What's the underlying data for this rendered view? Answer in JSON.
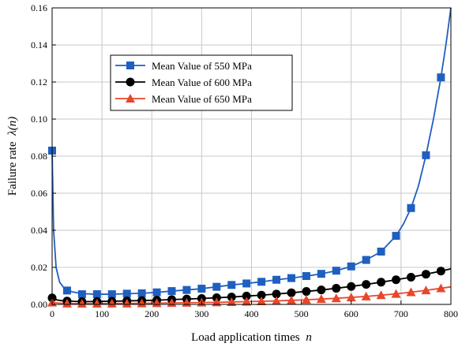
{
  "chart_data": {
    "type": "line",
    "title": "",
    "xlabel": "Load application times",
    "xlabel_var": "n",
    "ylabel": "Failure rate",
    "ylabel_var": "λ(n)",
    "xlim": [
      0,
      800
    ],
    "ylim": [
      0,
      0.16
    ],
    "x_ticks": [
      0,
      100,
      200,
      300,
      400,
      500,
      600,
      700,
      800
    ],
    "y_ticks": [
      0.0,
      0.02,
      0.04,
      0.06,
      0.08,
      0.1,
      0.12,
      0.14,
      0.16
    ],
    "x_tick_labels": [
      "0",
      "100",
      "200",
      "300",
      "400",
      "500",
      "600",
      "700",
      "800"
    ],
    "y_tick_labels": [
      "0.00",
      "0.02",
      "0.04",
      "0.06",
      "0.08",
      "0.10",
      "0.12",
      "0.14",
      "0.16"
    ],
    "grid": true,
    "legend_position": "upper-left",
    "series": [
      {
        "name": "Mean Value of 550 MPa",
        "color": "#1f5fbf",
        "marker": "square",
        "x": [
          0,
          30,
          60,
          90,
          120,
          150,
          180,
          210,
          240,
          270,
          300,
          330,
          360,
          390,
          420,
          450,
          480,
          510,
          540,
          570,
          600,
          630,
          660,
          690,
          720,
          750,
          780
        ],
        "y": [
          0.083,
          0.0075,
          0.0055,
          0.0055,
          0.0055,
          0.0058,
          0.006,
          0.0065,
          0.0072,
          0.0078,
          0.0085,
          0.0095,
          0.0105,
          0.0113,
          0.0122,
          0.0133,
          0.0142,
          0.0153,
          0.0165,
          0.0182,
          0.0205,
          0.024,
          0.0285,
          0.037,
          0.052,
          0.0805,
          0.1225
        ],
        "curve_x": [
          0,
          3,
          8,
          15,
          25,
          40,
          60,
          90,
          120,
          150,
          180,
          210,
          240,
          270,
          300,
          330,
          360,
          390,
          420,
          450,
          480,
          510,
          540,
          570,
          600,
          630,
          660,
          690,
          705,
          720,
          735,
          750,
          765,
          780,
          790,
          800
        ],
        "curve_y": [
          0.083,
          0.04,
          0.02,
          0.012,
          0.0085,
          0.0068,
          0.0058,
          0.0055,
          0.0055,
          0.0058,
          0.006,
          0.0065,
          0.0072,
          0.0078,
          0.0085,
          0.0095,
          0.0105,
          0.0113,
          0.0122,
          0.0133,
          0.0142,
          0.0153,
          0.0165,
          0.0182,
          0.0205,
          0.024,
          0.0285,
          0.037,
          0.0435,
          0.052,
          0.064,
          0.0805,
          0.1,
          0.1225,
          0.14,
          0.16
        ]
      },
      {
        "name": "Mean Value of 600 MPa",
        "color": "#000000",
        "marker": "circle",
        "x": [
          0,
          30,
          60,
          90,
          120,
          150,
          180,
          210,
          240,
          270,
          300,
          330,
          360,
          390,
          420,
          450,
          480,
          510,
          540,
          570,
          600,
          630,
          660,
          690,
          720,
          750,
          780
        ],
        "y": [
          0.0035,
          0.0018,
          0.0015,
          0.0016,
          0.0017,
          0.0019,
          0.0021,
          0.0023,
          0.0026,
          0.0029,
          0.0032,
          0.0036,
          0.004,
          0.0045,
          0.005,
          0.0056,
          0.0063,
          0.007,
          0.0078,
          0.0087,
          0.0097,
          0.0108,
          0.012,
          0.0133,
          0.0147,
          0.0163,
          0.018
        ],
        "curve_x": [
          0,
          10,
          20,
          30,
          60,
          90,
          120,
          150,
          180,
          210,
          240,
          270,
          300,
          330,
          360,
          390,
          420,
          450,
          480,
          510,
          540,
          570,
          600,
          630,
          660,
          690,
          720,
          750,
          780,
          800
        ],
        "curve_y": [
          0.0035,
          0.0024,
          0.002,
          0.0018,
          0.0015,
          0.0016,
          0.0017,
          0.0019,
          0.0021,
          0.0023,
          0.0026,
          0.0029,
          0.0032,
          0.0036,
          0.004,
          0.0045,
          0.005,
          0.0056,
          0.0063,
          0.007,
          0.0078,
          0.0087,
          0.0097,
          0.0108,
          0.012,
          0.0133,
          0.0147,
          0.0163,
          0.018,
          0.0192
        ]
      },
      {
        "name": "Mean Value of 650 MPa",
        "color": "#e8472b",
        "marker": "triangle",
        "x": [
          0,
          30,
          60,
          90,
          120,
          150,
          180,
          210,
          240,
          270,
          300,
          330,
          360,
          390,
          420,
          450,
          480,
          510,
          540,
          570,
          600,
          630,
          660,
          690,
          720,
          750,
          780
        ],
        "y": [
          0.001,
          0.0005,
          0.0004,
          0.0004,
          0.0005,
          0.0005,
          0.0006,
          0.0007,
          0.0008,
          0.0009,
          0.001,
          0.0011,
          0.0013,
          0.0015,
          0.0017,
          0.0019,
          0.0022,
          0.0025,
          0.0029,
          0.0033,
          0.0038,
          0.0043,
          0.005,
          0.0057,
          0.0066,
          0.0076,
          0.0087
        ],
        "curve_x": [
          0,
          15,
          30,
          60,
          90,
          120,
          150,
          180,
          210,
          240,
          270,
          300,
          330,
          360,
          390,
          420,
          450,
          480,
          510,
          540,
          570,
          600,
          630,
          660,
          690,
          720,
          750,
          780,
          800
        ],
        "curve_y": [
          0.001,
          0.0007,
          0.0005,
          0.0004,
          0.0004,
          0.0005,
          0.0005,
          0.0006,
          0.0007,
          0.0008,
          0.0009,
          0.001,
          0.0011,
          0.0013,
          0.0015,
          0.0017,
          0.0019,
          0.0022,
          0.0025,
          0.0029,
          0.0033,
          0.0038,
          0.0043,
          0.005,
          0.0057,
          0.0066,
          0.0076,
          0.0087,
          0.0095
        ]
      }
    ]
  }
}
